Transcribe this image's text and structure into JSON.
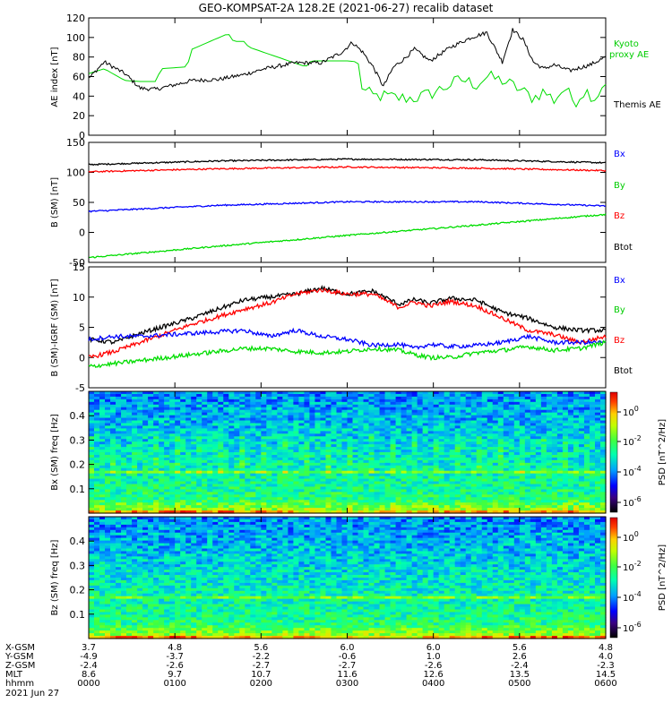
{
  "title": "GEO-KOMPSAT-2A 128.2E (2021-06-27) recalib dataset",
  "chart_data": [
    {
      "type": "line",
      "panel": "ae-index",
      "ylabel": "AE index [nT]",
      "ylim": [
        0,
        120
      ],
      "yticks": [
        "120",
        "100",
        "80",
        "60",
        "40",
        "20",
        "0"
      ],
      "series": [
        {
          "name": "Kyoto proxy AE",
          "color": "#00dd00",
          "x": [
            0,
            0.03,
            0.07,
            0.1,
            0.13,
            0.14,
            0.19,
            0.2,
            0.27,
            0.28,
            0.3,
            0.31,
            0.42,
            0.43,
            0.5,
            0.52,
            0.53,
            0.55,
            0.57,
            0.6,
            0.63,
            0.66,
            0.7,
            0.72,
            0.75,
            0.77,
            0.8,
            0.83,
            0.86,
            0.88,
            0.9,
            0.92,
            0.94,
            0.96,
            0.98,
            1.0
          ],
          "y": [
            63,
            68,
            56,
            55,
            55,
            68,
            70,
            88,
            104,
            96,
            96,
            90,
            70,
            76,
            76,
            75,
            46,
            40,
            40,
            38,
            38,
            42,
            52,
            57,
            52,
            60,
            56,
            48,
            38,
            45,
            36,
            48,
            34,
            46,
            38,
            56
          ]
        },
        {
          "name": "Themis AE",
          "color": "#000000",
          "x": [
            0,
            0.03,
            0.07,
            0.1,
            0.13,
            0.17,
            0.2,
            0.25,
            0.3,
            0.34,
            0.4,
            0.45,
            0.49,
            0.51,
            0.53,
            0.55,
            0.57,
            0.59,
            0.61,
            0.63,
            0.66,
            0.7,
            0.74,
            0.77,
            0.8,
            0.82,
            0.84,
            0.86,
            0.88,
            0.9,
            0.93,
            0.97,
            1.0
          ],
          "y": [
            58,
            75,
            63,
            48,
            47,
            52,
            56,
            57,
            62,
            68,
            74,
            74,
            85,
            95,
            85,
            70,
            50,
            70,
            78,
            88,
            76,
            90,
            100,
            105,
            75,
            108,
            98,
            75,
            68,
            72,
            66,
            72,
            80
          ]
        }
      ]
    },
    {
      "type": "line",
      "panel": "b-field",
      "ylabel": "B (SM) [nT]",
      "ylim": [
        -50,
        150
      ],
      "yticks": [
        "150",
        "100",
        "50",
        "0",
        "-50"
      ],
      "legend": [
        "Bx",
        "By",
        "Bz",
        "Btot"
      ],
      "series": [
        {
          "name": "Btot",
          "color": "#000000",
          "x": [
            0,
            0.25,
            0.5,
            0.75,
            1.0
          ],
          "y": [
            113,
            119,
            122,
            121,
            116
          ]
        },
        {
          "name": "Bz",
          "color": "#ff0000",
          "x": [
            0,
            0.25,
            0.5,
            0.75,
            1.0
          ],
          "y": [
            101,
            106,
            109,
            107,
            103
          ]
        },
        {
          "name": "Bx",
          "color": "#0000ff",
          "x": [
            0,
            0.25,
            0.5,
            0.75,
            1.0
          ],
          "y": [
            35,
            45,
            51,
            51,
            44
          ]
        },
        {
          "name": "By",
          "color": "#00dd00",
          "x": [
            0,
            0.25,
            0.5,
            0.75,
            1.0
          ],
          "y": [
            -42,
            -23,
            -5,
            12,
            30
          ]
        }
      ]
    },
    {
      "type": "line",
      "panel": "b-minus-igrf",
      "ylabel": "B (SM)-IGRF (SM) [nT]",
      "ylim": [
        -5,
        15
      ],
      "yticks": [
        "15",
        "10",
        "5",
        "0",
        "-5"
      ],
      "legend": [
        "Bx",
        "By",
        "Bz",
        "Btot"
      ],
      "series": [
        {
          "name": "Btot",
          "color": "#000000",
          "x": [
            0,
            0.05,
            0.1,
            0.2,
            0.3,
            0.35,
            0.4,
            0.45,
            0.5,
            0.55,
            0.6,
            0.63,
            0.66,
            0.7,
            0.75,
            0.8,
            0.85,
            0.9,
            0.95,
            1.0
          ],
          "y": [
            3,
            2.5,
            4,
            6.5,
            9.5,
            10,
            10.5,
            11.5,
            10.5,
            11,
            8.8,
            9.6,
            9,
            9.8,
            9.5,
            7.5,
            6.5,
            5,
            4.5,
            4.5
          ]
        },
        {
          "name": "Bz",
          "color": "#ff0000",
          "x": [
            0,
            0.05,
            0.1,
            0.2,
            0.3,
            0.35,
            0.4,
            0.45,
            0.5,
            0.55,
            0.6,
            0.63,
            0.66,
            0.7,
            0.75,
            0.8,
            0.85,
            0.9,
            0.95,
            1.0
          ],
          "y": [
            0,
            1,
            2.5,
            5.5,
            8,
            9,
            10.5,
            11.2,
            10.5,
            10.5,
            8.3,
            9.2,
            8.5,
            9.3,
            8.5,
            6.5,
            4.5,
            3.8,
            2.5,
            3.5
          ]
        },
        {
          "name": "Bx",
          "color": "#0000ff",
          "x": [
            0,
            0.05,
            0.1,
            0.2,
            0.3,
            0.35,
            0.4,
            0.45,
            0.5,
            0.55,
            0.6,
            0.63,
            0.66,
            0.7,
            0.75,
            0.8,
            0.85,
            0.9,
            0.95,
            1.0
          ],
          "y": [
            3,
            3.5,
            3.5,
            4,
            4.5,
            3.5,
            4.5,
            3.5,
            3,
            2,
            2.2,
            1.5,
            2.2,
            1.8,
            2,
            2.5,
            3.5,
            2.5,
            2.5,
            2.5
          ]
        },
        {
          "name": "By",
          "color": "#00dd00",
          "x": [
            0,
            0.05,
            0.1,
            0.2,
            0.3,
            0.35,
            0.4,
            0.45,
            0.5,
            0.55,
            0.6,
            0.63,
            0.66,
            0.7,
            0.75,
            0.8,
            0.85,
            0.9,
            0.95,
            1.0
          ],
          "y": [
            -1.5,
            -1,
            -0.5,
            0.5,
            1.5,
            1.5,
            1,
            0.8,
            1,
            1.5,
            1.2,
            0.5,
            0,
            0,
            0.8,
            1.2,
            1.8,
            1.2,
            1.5,
            2.5
          ]
        }
      ]
    },
    {
      "type": "heatmap",
      "panel": "bx-spectrogram",
      "ylabel": "Bx (SM) freq [Hz]",
      "ylim": [
        0,
        0.5
      ],
      "yticks": [
        "0.4",
        "0.3",
        "0.2",
        "0.1"
      ],
      "colorbar_label": "PSD [nT^2/Hz]",
      "colorbar_ticks": [
        "10^0",
        "10^-2",
        "10^-4",
        "10^-6"
      ]
    },
    {
      "type": "heatmap",
      "panel": "bz-spectrogram",
      "ylabel": "Bz (SM) freq [Hz]",
      "ylim": [
        0,
        0.5
      ],
      "yticks": [
        "0.4",
        "0.3",
        "0.2",
        "0.1"
      ],
      "colorbar_label": "PSD [nT^2/Hz]",
      "colorbar_ticks": [
        "10^0",
        "10^-2",
        "10^-4",
        "10^-6"
      ]
    }
  ],
  "legends": {
    "ae": [
      "Kyoto",
      "proxy AE",
      "Themis AE"
    ],
    "b": [
      "Bx",
      "By",
      "Bz",
      "Btot"
    ],
    "db": [
      "Bx",
      "By",
      "Bz",
      "Btot"
    ]
  },
  "xaxis": {
    "row_labels": [
      "X-GSM",
      "Y-GSM",
      "Z-GSM",
      "MLT",
      "hhmm",
      "2021 Jun 27"
    ],
    "columns": [
      {
        "x": "3.7",
        "y": "-4.9",
        "z": "-2.4",
        "mlt": "8.6",
        "hhmm": "0000"
      },
      {
        "x": "4.8",
        "y": "-3.7",
        "z": "-2.6",
        "mlt": "9.7",
        "hhmm": "0100"
      },
      {
        "x": "5.6",
        "y": "-2.2",
        "z": "-2.7",
        "mlt": "10.7",
        "hhmm": "0200"
      },
      {
        "x": "6.0",
        "y": "-0.6",
        "z": "-2.7",
        "mlt": "11.6",
        "hhmm": "0300"
      },
      {
        "x": "6.0",
        "y": "1.0",
        "z": "-2.6",
        "mlt": "12.6",
        "hhmm": "0400"
      },
      {
        "x": "5.6",
        "y": "2.6",
        "z": "-2.4",
        "mlt": "13.5",
        "hhmm": "0500"
      },
      {
        "x": "4.8",
        "y": "4.0",
        "z": "-2.3",
        "mlt": "14.5",
        "hhmm": "0600"
      }
    ]
  },
  "colors": {
    "kyoto": "#00dd00",
    "themis": "#000000",
    "bx": "#0000ff",
    "by": "#00dd00",
    "bz": "#ff0000",
    "btot": "#000000"
  }
}
